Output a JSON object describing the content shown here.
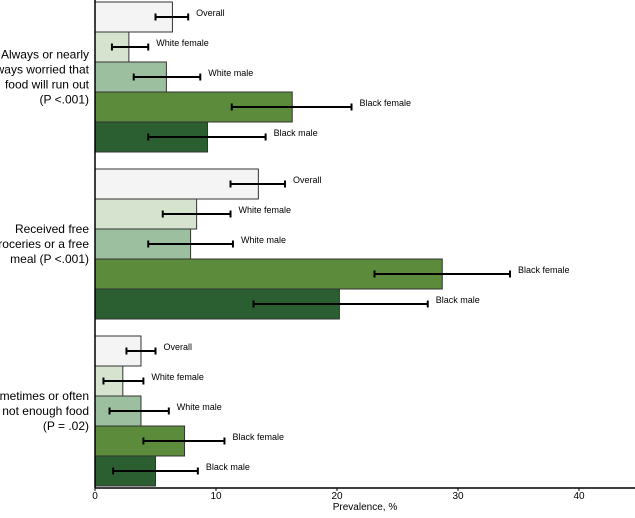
{
  "chart_data": {
    "type": "bar",
    "orientation": "horizontal",
    "xlabel": "Prevalence, %",
    "xlim": [
      0,
      44
    ],
    "xticks": [
      0,
      10,
      20,
      30,
      40
    ],
    "grid": false,
    "series_colors": {
      "Overall": "#f4f4f4",
      "White female": "#d6e3cf",
      "White male": "#9cc09f",
      "Black female": "#5b8b3b",
      "Black male": "#2b5f31"
    },
    "groups": [
      {
        "label": [
          "Always or nearly",
          "always worried that",
          "food will run out",
          "(P <.001)"
        ],
        "bars": [
          {
            "name": "Overall",
            "value": 6.4,
            "ci": [
              5.0,
              7.7
            ]
          },
          {
            "name": "White female",
            "value": 2.8,
            "ci": [
              1.4,
              4.4
            ]
          },
          {
            "name": "White male",
            "value": 5.9,
            "ci": [
              3.2,
              8.7
            ]
          },
          {
            "name": "Black female",
            "value": 16.3,
            "ci": [
              11.3,
              21.2
            ]
          },
          {
            "name": "Black male",
            "value": 9.3,
            "ci": [
              4.4,
              14.1
            ]
          }
        ]
      },
      {
        "label": [
          "Received free",
          "groceries or a free",
          "meal (P <.001)"
        ],
        "bars": [
          {
            "name": "Overall",
            "value": 13.5,
            "ci": [
              11.2,
              15.7
            ]
          },
          {
            "name": "White female",
            "value": 8.4,
            "ci": [
              5.6,
              11.2
            ]
          },
          {
            "name": "White male",
            "value": 7.9,
            "ci": [
              4.4,
              11.4
            ]
          },
          {
            "name": "Black female",
            "value": 28.7,
            "ci": [
              23.1,
              34.3
            ]
          },
          {
            "name": "Black male",
            "value": 20.2,
            "ci": [
              13.1,
              27.5
            ]
          }
        ]
      },
      {
        "label": [
          "Sometimes or often",
          "not enough food",
          "(P = .02)"
        ],
        "bars": [
          {
            "name": "Overall",
            "value": 3.8,
            "ci": [
              2.6,
              5.0
            ]
          },
          {
            "name": "White female",
            "value": 2.3,
            "ci": [
              0.7,
              4.0
            ]
          },
          {
            "name": "White male",
            "value": 3.8,
            "ci": [
              1.2,
              6.1
            ]
          },
          {
            "name": "Black female",
            "value": 7.4,
            "ci": [
              4.0,
              10.7
            ]
          },
          {
            "name": "Black male",
            "value": 5.0,
            "ci": [
              1.5,
              8.5
            ]
          }
        ]
      }
    ]
  }
}
